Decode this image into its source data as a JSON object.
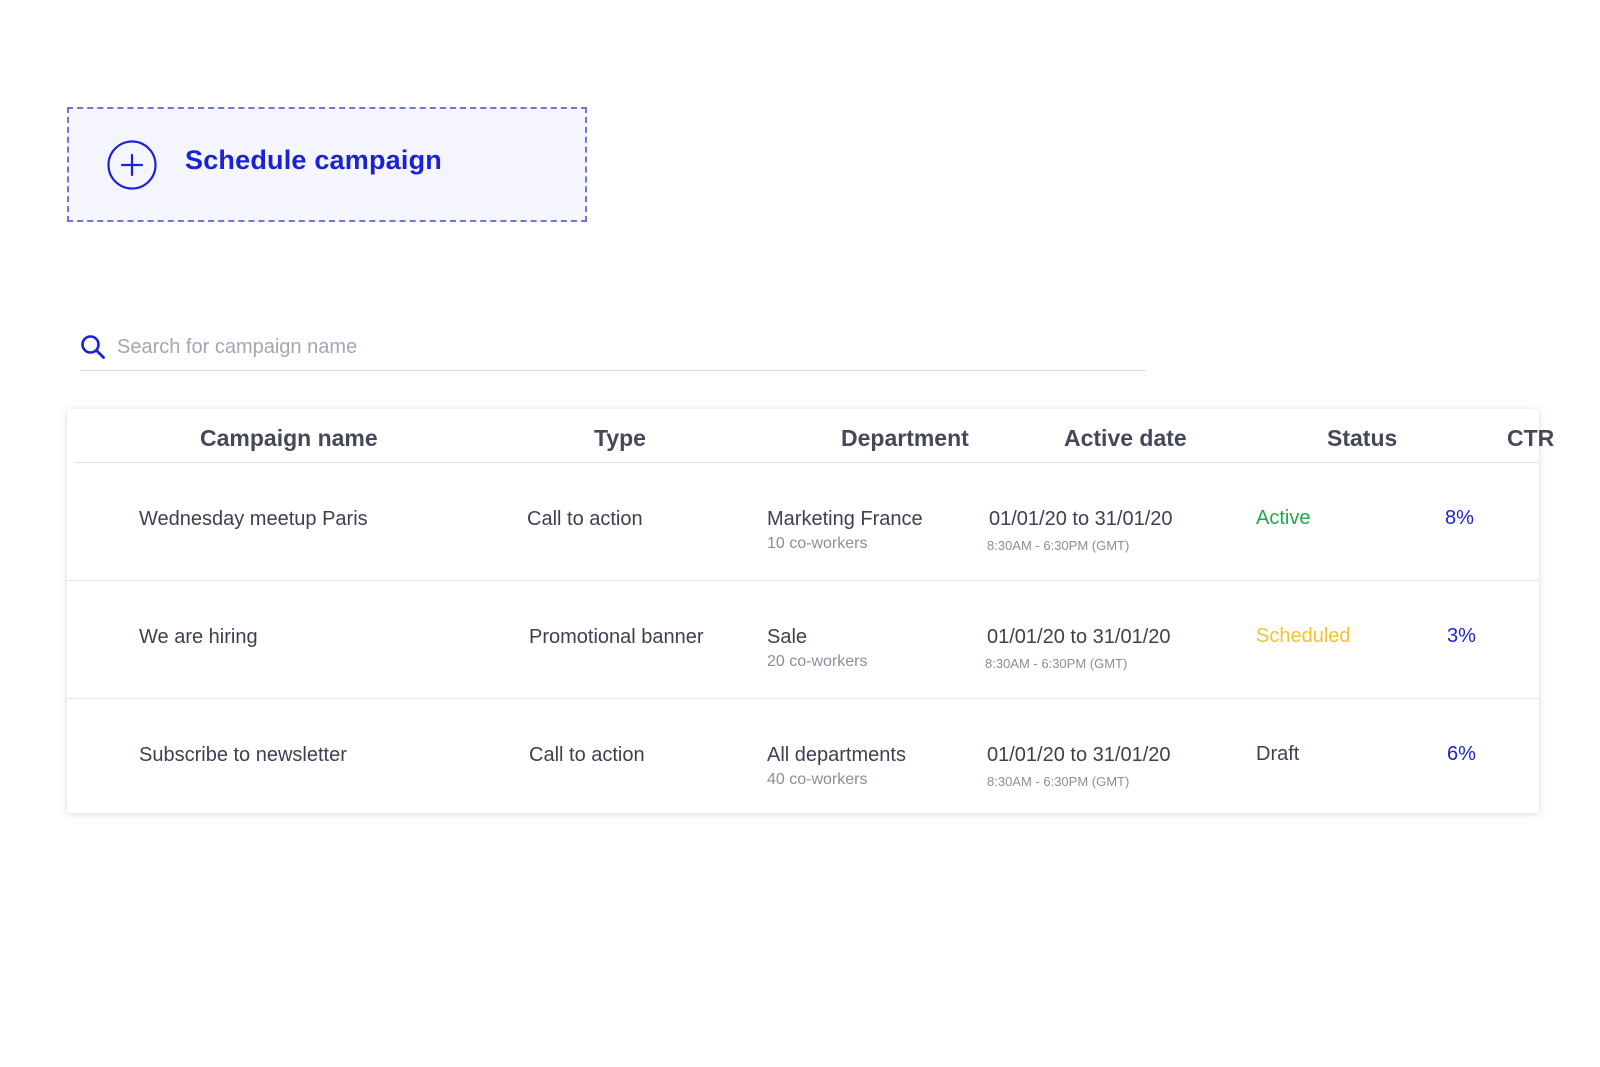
{
  "schedule": {
    "label": "Schedule campaign",
    "icon": "plus-circle-icon",
    "color": "#1a22d6"
  },
  "search": {
    "placeholder": "Search for campaign name",
    "value": "",
    "icon": "search-icon"
  },
  "table": {
    "headers": {
      "campaign_name": "Campaign name",
      "type": "Type",
      "department": "Department",
      "active_date": "Active date",
      "status": "Status",
      "ctr": "CTR"
    },
    "rows": [
      {
        "campaign_name": "Wednesday meetup Paris",
        "type": "Call to action",
        "department": "Marketing France",
        "coworkers": "10 co-workers",
        "date_range": "01/01/20 to 31/01/20",
        "time_range": "8:30AM - 6:30PM (GMT)",
        "status": "Active",
        "status_color": "#1aab4b",
        "ctr": "8%"
      },
      {
        "campaign_name": "We are hiring",
        "type": "Promotional banner",
        "department": "Sale",
        "coworkers": "20 co-workers",
        "date_range": "01/01/20 to 31/01/20",
        "time_range": "8:30AM - 6:30PM (GMT)",
        "status": "Scheduled",
        "status_color": "#f2c230",
        "ctr": "3%"
      },
      {
        "campaign_name": "Subscribe to newsletter",
        "type": "Call to action",
        "department": "All departments",
        "coworkers": "40 co-workers",
        "date_range": "01/01/20 to 31/01/20",
        "time_range": "8:30AM - 6:30PM (GMT)",
        "status": "Draft",
        "status_color": "#3d4052",
        "ctr": "6%"
      }
    ]
  }
}
